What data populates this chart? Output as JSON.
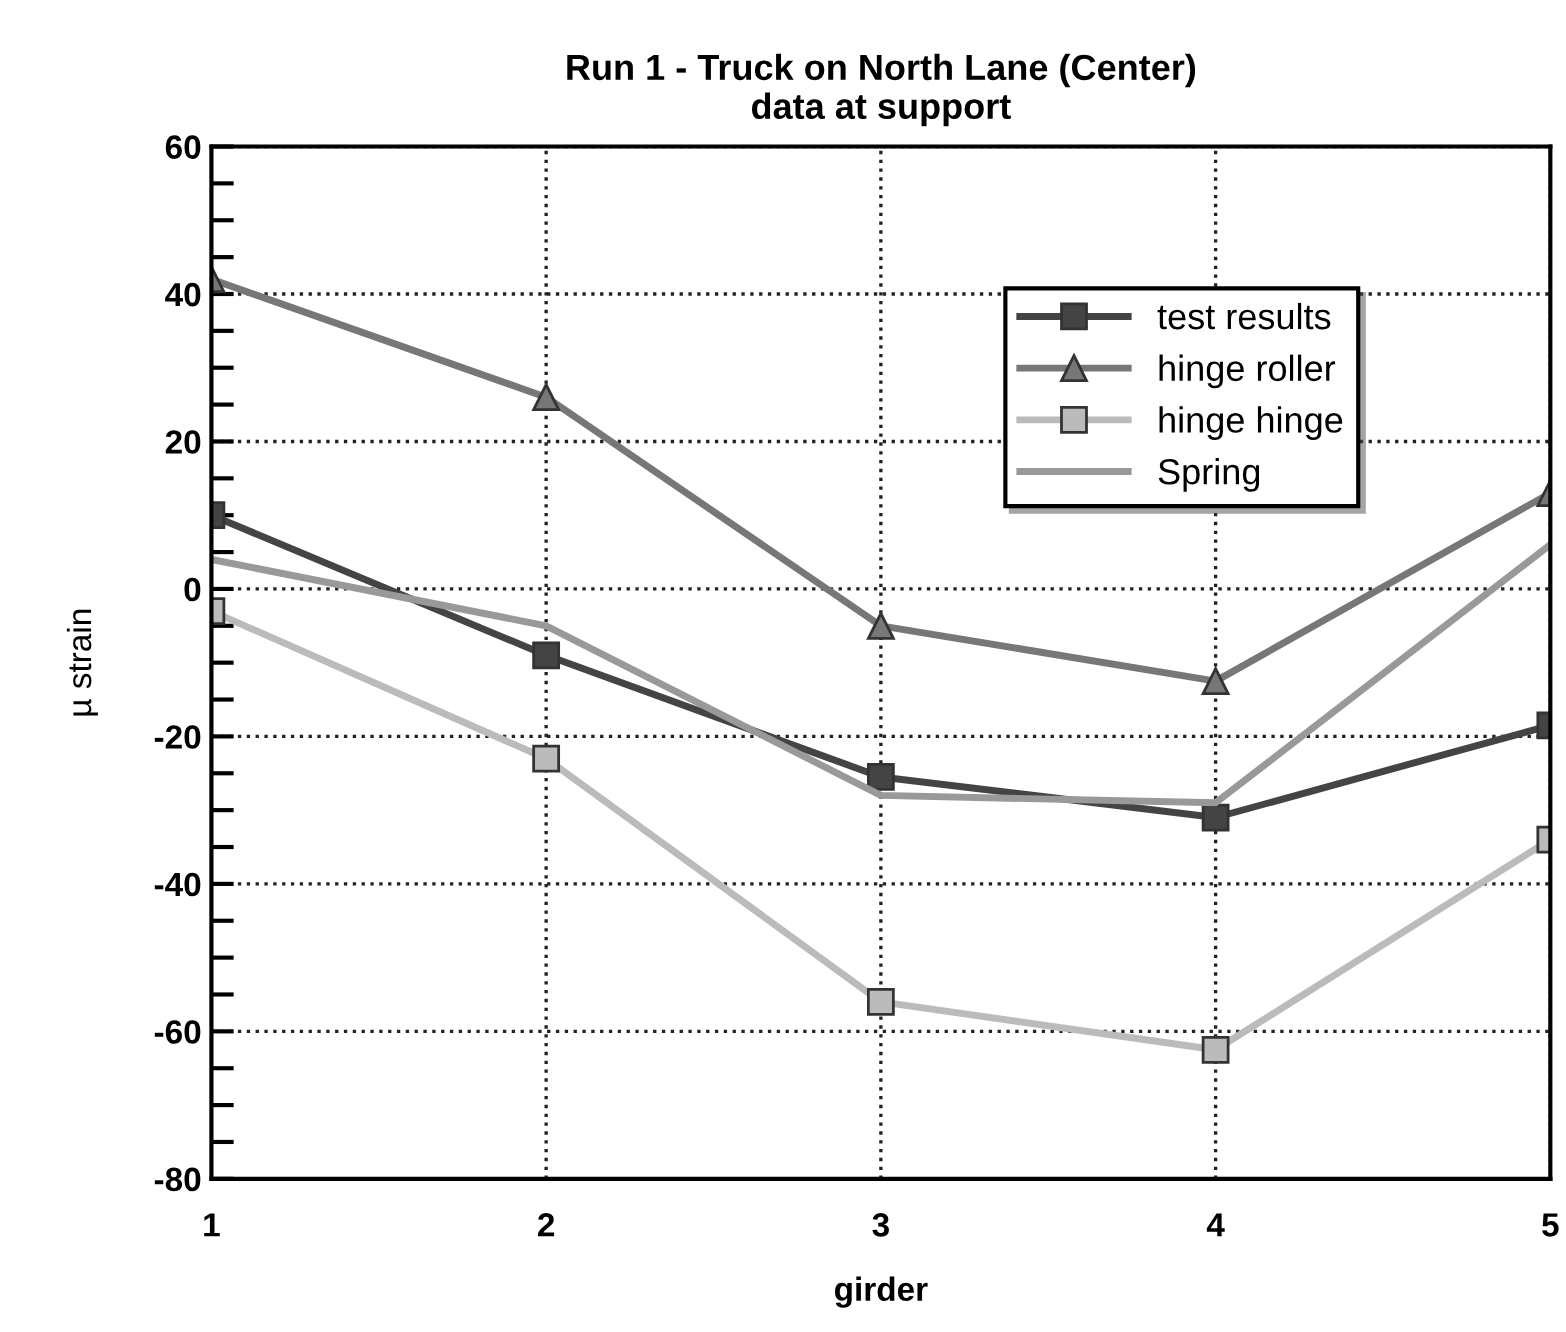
{
  "chart_data": {
    "type": "line",
    "title": "Run 1 - Truck on North Lane (Center)\ndata at support",
    "xlabel": "girder",
    "ylabel": "µ strain",
    "x": [
      1,
      2,
      3,
      4,
      5
    ],
    "series": [
      {
        "name": "test results",
        "color": "#444444",
        "marker": "square",
        "values": [
          10,
          -9,
          -25.5,
          -31,
          -18.5
        ]
      },
      {
        "name": "hinge roller",
        "color": "#777777",
        "marker": "triangle",
        "values": [
          42,
          26,
          -5,
          -12.5,
          13
        ]
      },
      {
        "name": "hinge hinge",
        "color": "#bbbbbb",
        "marker": "square",
        "values": [
          -3,
          -23,
          -56,
          -62.5,
          -34
        ]
      },
      {
        "name": "Spring",
        "color": "#999999",
        "marker": "none",
        "values": [
          4,
          -5,
          -28,
          -29,
          6
        ]
      }
    ],
    "xlim": [
      1,
      5
    ],
    "xticks": [
      1,
      2,
      3,
      4,
      5
    ],
    "ylim": [
      -80,
      60
    ],
    "yticks": [
      -80,
      -60,
      -40,
      -20,
      0,
      20,
      40,
      60
    ],
    "grid": true,
    "legend": "top right",
    "line_style": "solid"
  }
}
